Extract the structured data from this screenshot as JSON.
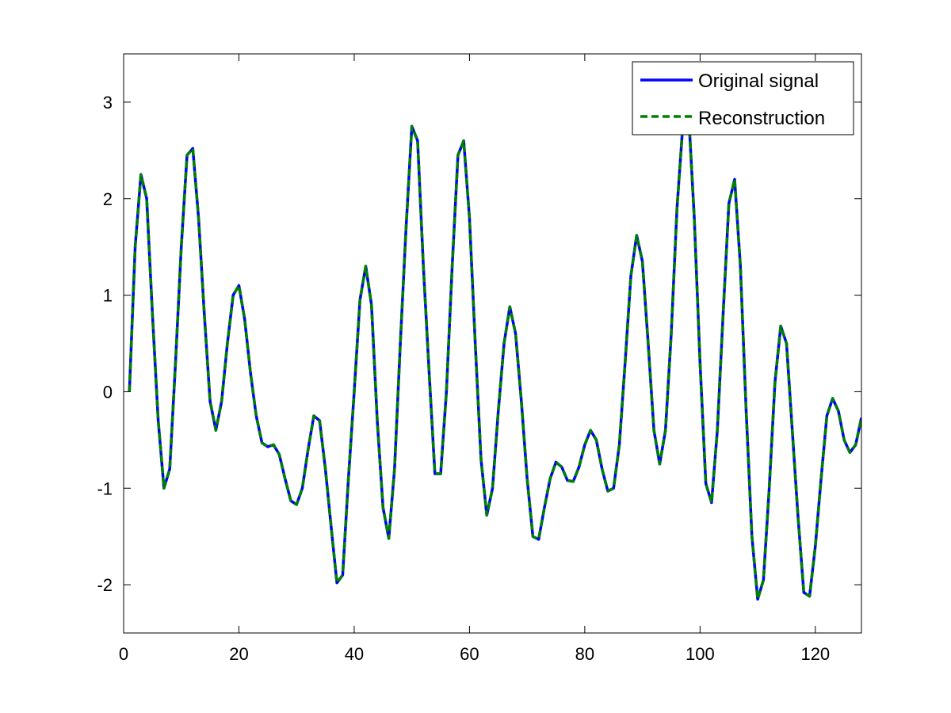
{
  "chart_data": {
    "type": "line",
    "title": "",
    "xlabel": "",
    "ylabel": "",
    "xlim": [
      0,
      128
    ],
    "ylim": [
      -2.5,
      3.5
    ],
    "xticks": [
      0,
      20,
      40,
      60,
      80,
      100,
      120
    ],
    "yticks": [
      -2,
      -1,
      0,
      1,
      2,
      3
    ],
    "xtick_labels": [
      "0",
      "20",
      "40",
      "60",
      "80",
      "100",
      "120"
    ],
    "ytick_labels": [
      "-2",
      "-1",
      "0",
      "1",
      "2",
      "3"
    ],
    "grid": false,
    "legend_position": "top-right",
    "x": [
      1,
      2,
      3,
      4,
      5,
      6,
      7,
      8,
      9,
      10,
      11,
      12,
      13,
      14,
      15,
      16,
      17,
      18,
      19,
      20,
      21,
      22,
      23,
      24,
      25,
      26,
      27,
      28,
      29,
      30,
      31,
      32,
      33,
      34,
      35,
      36,
      37,
      38,
      39,
      40,
      41,
      42,
      43,
      44,
      45,
      46,
      47,
      48,
      49,
      50,
      51,
      52,
      53,
      54,
      55,
      56,
      57,
      58,
      59,
      60,
      61,
      62,
      63,
      64,
      65,
      66,
      67,
      68,
      69,
      70,
      71,
      72,
      73,
      74,
      75,
      76,
      77,
      78,
      79,
      80,
      81,
      82,
      83,
      84,
      85,
      86,
      87,
      88,
      89,
      90,
      91,
      92,
      93,
      94,
      95,
      96,
      97,
      98,
      99,
      100,
      101,
      102,
      103,
      104,
      105,
      106,
      107,
      108,
      109,
      110,
      111,
      112,
      113,
      114,
      115,
      116,
      117,
      118,
      119,
      120,
      121,
      122,
      123,
      124,
      125,
      126,
      127,
      128
    ],
    "series": [
      {
        "name": "Original signal",
        "color": "#0000ff",
        "style": "solid",
        "values": [
          0.0,
          1.5,
          2.25,
          2.0,
          0.8,
          -0.3,
          -1.0,
          -0.8,
          0.3,
          1.5,
          2.45,
          2.52,
          1.8,
          0.8,
          -0.1,
          -0.4,
          -0.1,
          0.5,
          1.0,
          1.1,
          0.75,
          0.2,
          -0.25,
          -0.53,
          -0.57,
          -0.55,
          -0.65,
          -0.9,
          -1.13,
          -1.17,
          -1.0,
          -0.6,
          -0.25,
          -0.3,
          -0.8,
          -1.4,
          -1.98,
          -1.9,
          -0.9,
          0.0,
          0.95,
          1.3,
          0.9,
          -0.3,
          -1.2,
          -1.52,
          -0.8,
          0.5,
          1.7,
          2.75,
          2.6,
          1.3,
          0.2,
          -0.85,
          -0.85,
          0.0,
          1.3,
          2.45,
          2.6,
          1.8,
          0.5,
          -0.7,
          -1.28,
          -1.0,
          -0.2,
          0.5,
          0.88,
          0.6,
          -0.1,
          -0.9,
          -1.5,
          -1.53,
          -1.2,
          -0.9,
          -0.73,
          -0.78,
          -0.92,
          -0.93,
          -0.78,
          -0.55,
          -0.4,
          -0.5,
          -0.8,
          -1.03,
          -1.0,
          -0.55,
          0.3,
          1.2,
          1.62,
          1.35,
          0.5,
          -0.4,
          -0.75,
          -0.4,
          0.6,
          1.9,
          2.75,
          2.9,
          1.8,
          0.3,
          -0.95,
          -1.15,
          -0.4,
          0.8,
          1.95,
          2.2,
          1.3,
          -0.2,
          -1.5,
          -2.15,
          -1.95,
          -1.0,
          0.1,
          0.68,
          0.5,
          -0.4,
          -1.3,
          -2.08,
          -2.12,
          -1.6,
          -0.9,
          -0.25,
          -0.07,
          -0.2,
          -0.5,
          -0.63,
          -0.55,
          -0.27
        ]
      },
      {
        "name": "Reconstruction",
        "color": "#008000",
        "style": "dashed",
        "values": [
          0.0,
          1.5,
          2.25,
          2.0,
          0.8,
          -0.3,
          -1.0,
          -0.8,
          0.3,
          1.5,
          2.45,
          2.52,
          1.8,
          0.8,
          -0.1,
          -0.4,
          -0.1,
          0.5,
          1.0,
          1.1,
          0.75,
          0.2,
          -0.25,
          -0.53,
          -0.57,
          -0.55,
          -0.65,
          -0.9,
          -1.13,
          -1.17,
          -1.0,
          -0.6,
          -0.25,
          -0.3,
          -0.8,
          -1.4,
          -1.98,
          -1.9,
          -0.9,
          0.0,
          0.95,
          1.3,
          0.9,
          -0.3,
          -1.2,
          -1.52,
          -0.8,
          0.5,
          1.7,
          2.75,
          2.6,
          1.3,
          0.2,
          -0.85,
          -0.85,
          0.0,
          1.3,
          2.45,
          2.6,
          1.8,
          0.5,
          -0.7,
          -1.28,
          -1.0,
          -0.2,
          0.5,
          0.88,
          0.6,
          -0.1,
          -0.9,
          -1.5,
          -1.53,
          -1.2,
          -0.9,
          -0.73,
          -0.78,
          -0.92,
          -0.93,
          -0.78,
          -0.55,
          -0.4,
          -0.5,
          -0.8,
          -1.03,
          -1.0,
          -0.55,
          0.3,
          1.2,
          1.62,
          1.35,
          0.5,
          -0.4,
          -0.75,
          -0.4,
          0.6,
          1.9,
          2.75,
          2.9,
          1.8,
          0.3,
          -0.95,
          -1.15,
          -0.4,
          0.8,
          1.95,
          2.2,
          1.3,
          -0.2,
          -1.5,
          -2.15,
          -1.95,
          -1.0,
          0.1,
          0.68,
          0.5,
          -0.4,
          -1.3,
          -2.08,
          -2.12,
          -1.6,
          -0.9,
          -0.25,
          -0.07,
          -0.2,
          -0.5,
          -0.63,
          -0.55,
          -0.27
        ]
      }
    ]
  }
}
